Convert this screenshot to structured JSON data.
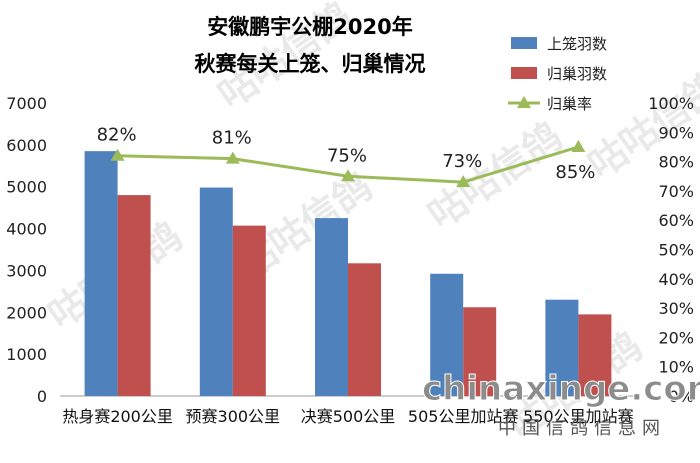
{
  "chart_data": {
    "type": "bar",
    "title": [
      "安徽鹏宇公棚2020年",
      "秋赛每关上笼、归巢情况"
    ],
    "categories": [
      "热身赛200公里",
      "预赛300公里",
      "决赛500公里",
      "505公里加站赛",
      "550公里加站赛"
    ],
    "series": [
      {
        "name": "上笼羽数",
        "kind": "bar",
        "axis": "left",
        "color": "#4f81bd",
        "values": [
          5850,
          4980,
          4250,
          2920,
          2300
        ]
      },
      {
        "name": "归巢羽数",
        "kind": "bar",
        "axis": "left",
        "color": "#c0504d",
        "values": [
          4800,
          4070,
          3170,
          2120,
          1950
        ]
      },
      {
        "name": "归巢率",
        "kind": "line",
        "axis": "right",
        "color": "#9bbb59",
        "marker": "triangle",
        "values": [
          82,
          81,
          75,
          73,
          85
        ],
        "labels": [
          "82%",
          "81%",
          "75%",
          "73%",
          "85%"
        ]
      }
    ],
    "y_left": {
      "min": 0,
      "max": 7000,
      "step": 1000,
      "ticks": [
        "0",
        "1000",
        "2000",
        "3000",
        "4000",
        "5000",
        "6000",
        "7000"
      ]
    },
    "y_right": {
      "min": 0,
      "max": 100,
      "step": 10,
      "ticks": [
        "0%",
        "10%",
        "20%",
        "30%",
        "40%",
        "50%",
        "60%",
        "70%",
        "80%",
        "90%",
        "100%"
      ]
    },
    "legend": "top-right",
    "grid": false
  },
  "watermark": {
    "site": "chinaxinge.com",
    "site_cn": "中国信鸽信息网",
    "ghost": "咕咕信鸽"
  }
}
